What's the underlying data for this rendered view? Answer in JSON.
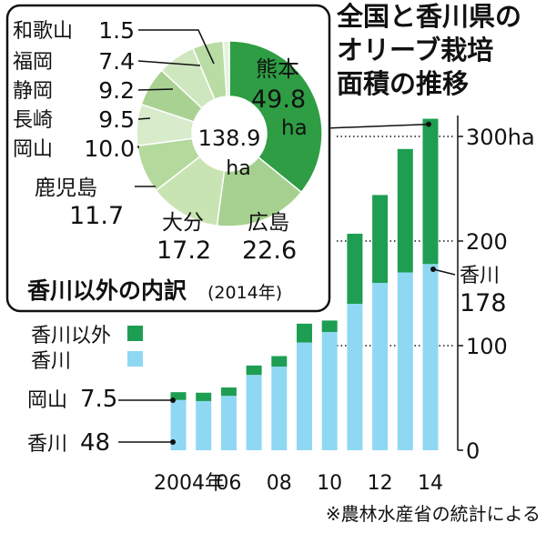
{
  "chart_data": [
    {
      "type": "bar",
      "stacked": true,
      "title": "全国と香川県のオリーブ栽培面積の推移",
      "title_lines": [
        "全国と香川県の",
        "オリーブ栽培",
        "面積の推移"
      ],
      "x": [
        2004,
        2005,
        2006,
        2007,
        2008,
        2009,
        2010,
        2011,
        2012,
        2013,
        2014
      ],
      "x_tick_labels": [
        "2004年",
        "06",
        "08",
        "10",
        "12",
        "14"
      ],
      "x_tick_years": [
        2004,
        2006,
        2008,
        2010,
        2012,
        2014
      ],
      "y_ticks": [
        0,
        100,
        200,
        "300ha"
      ],
      "y_tick_values": [
        0,
        100,
        200,
        300
      ],
      "ylim": [
        0,
        320
      ],
      "series": [
        {
          "name": "香川",
          "color": "#8fd8f3",
          "values": [
            48,
            47,
            52,
            72,
            80,
            103,
            113,
            140,
            160,
            170,
            178
          ]
        },
        {
          "name": "香川以外",
          "color": "#1e9e52",
          "values": [
            7.5,
            8,
            8,
            9,
            10,
            18,
            11,
            67,
            84,
            118,
            138.9
          ]
        }
      ],
      "legend": [
        {
          "label": "香川以外",
          "color": "#1e9e52"
        },
        {
          "label": "香川",
          "color": "#8fd8f3"
        }
      ],
      "annotations": {
        "okayama_label": "岡山",
        "okayama_value": "7.5",
        "kagawa_2004_label": "香川",
        "kagawa_2004_value": "48",
        "kagawa_2014_label": "香川",
        "kagawa_2014_value": "178"
      },
      "source": "※農林水産省の統計による"
    },
    {
      "type": "pie",
      "title": "香川以外の内訳",
      "title_suffix": "(2014年)",
      "total_value": "138.9",
      "total_unit": "ha",
      "slices": [
        {
          "label": "熊本",
          "value": 49.8,
          "display": "49.8",
          "unit": "ha",
          "color": "#2e9d44"
        },
        {
          "label": "広島",
          "value": 22.6,
          "display": "22.6",
          "color": "#a6d08f"
        },
        {
          "label": "大分",
          "value": 17.2,
          "display": "17.2",
          "color": "#c9e4b3"
        },
        {
          "label": "鹿児島",
          "value": 11.7,
          "display": "11.7",
          "color": "#b4d99c"
        },
        {
          "label": "岡山",
          "value": 10.0,
          "display": "10.0",
          "color": "#d8eccb"
        },
        {
          "label": "長崎",
          "value": 9.5,
          "display": "9.5",
          "color": "#a9d292"
        },
        {
          "label": "静岡",
          "value": 9.2,
          "display": "9.2",
          "color": "#cfe7bf"
        },
        {
          "label": "福岡",
          "value": 7.4,
          "display": "7.4",
          "color": "#b9dca4"
        },
        {
          "label": "和歌山",
          "value": 1.5,
          "display": "1.5",
          "color": "#e4f2da"
        }
      ]
    }
  ]
}
